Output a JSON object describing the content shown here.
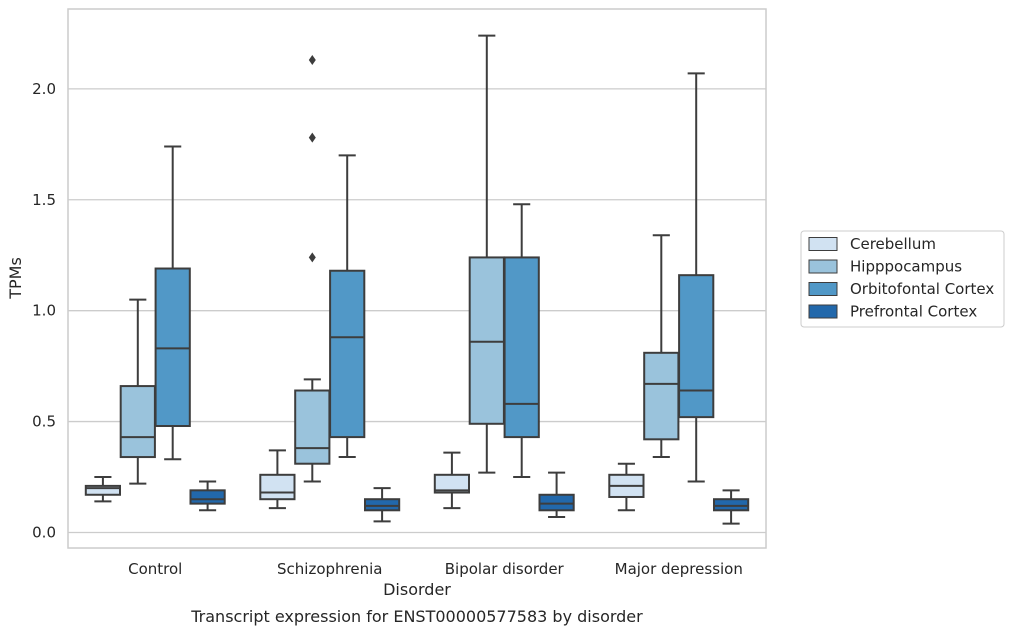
{
  "chart_data": {
    "type": "box",
    "caption": "Transcript expression for ENST00000577583 by disorder",
    "xlabel": "Disorder",
    "ylabel": "TPMs",
    "ylim": [
      -0.07,
      2.36
    ],
    "yticks": [
      0.0,
      0.5,
      1.0,
      1.5,
      2.0
    ],
    "ytick_labels": [
      "0.0",
      "0.5",
      "1.0",
      "1.5",
      "2.0"
    ],
    "grid": "horizontal",
    "legend_position": "right",
    "categories": [
      "Control",
      "Schizophrenia",
      "Bipolar disorder",
      "Major depression"
    ],
    "series": [
      {
        "name": "Cerebellum",
        "color": "#d1e2f2",
        "boxes": [
          {
            "whislo": 0.14,
            "q1": 0.17,
            "med": 0.2,
            "q3": 0.21,
            "whishi": 0.25,
            "fliers": []
          },
          {
            "whislo": 0.11,
            "q1": 0.15,
            "med": 0.18,
            "q3": 0.26,
            "whishi": 0.37,
            "fliers": []
          },
          {
            "whislo": 0.11,
            "q1": 0.18,
            "med": 0.19,
            "q3": 0.26,
            "whishi": 0.36,
            "fliers": []
          },
          {
            "whislo": 0.1,
            "q1": 0.16,
            "med": 0.21,
            "q3": 0.26,
            "whishi": 0.31,
            "fliers": []
          }
        ]
      },
      {
        "name": "Hipppocampus",
        "color": "#9ac3dc",
        "boxes": [
          {
            "whislo": 0.22,
            "q1": 0.34,
            "med": 0.43,
            "q3": 0.66,
            "whishi": 1.05,
            "fliers": []
          },
          {
            "whislo": 0.23,
            "q1": 0.31,
            "med": 0.38,
            "q3": 0.64,
            "whishi": 0.69,
            "fliers": [
              1.24,
              1.78,
              2.13
            ]
          },
          {
            "whislo": 0.27,
            "q1": 0.49,
            "med": 0.86,
            "q3": 1.24,
            "whishi": 2.24,
            "fliers": []
          },
          {
            "whislo": 0.34,
            "q1": 0.42,
            "med": 0.67,
            "q3": 0.81,
            "whishi": 1.34,
            "fliers": []
          }
        ]
      },
      {
        "name": "Orbitofontal Cortex",
        "color": "#5198c7",
        "boxes": [
          {
            "whislo": 0.33,
            "q1": 0.48,
            "med": 0.83,
            "q3": 1.19,
            "whishi": 1.74,
            "fliers": []
          },
          {
            "whislo": 0.34,
            "q1": 0.43,
            "med": 0.88,
            "q3": 1.18,
            "whishi": 1.7,
            "fliers": []
          },
          {
            "whislo": 0.25,
            "q1": 0.43,
            "med": 0.58,
            "q3": 1.24,
            "whishi": 1.48,
            "fliers": []
          },
          {
            "whislo": 0.23,
            "q1": 0.52,
            "med": 0.64,
            "q3": 1.16,
            "whishi": 2.07,
            "fliers": []
          }
        ]
      },
      {
        "name": "Prefrontal Cortex",
        "color": "#2268ab",
        "boxes": [
          {
            "whislo": 0.1,
            "q1": 0.13,
            "med": 0.15,
            "q3": 0.19,
            "whishi": 0.23,
            "fliers": []
          },
          {
            "whislo": 0.05,
            "q1": 0.1,
            "med": 0.12,
            "q3": 0.15,
            "whishi": 0.2,
            "fliers": []
          },
          {
            "whislo": 0.07,
            "q1": 0.1,
            "med": 0.13,
            "q3": 0.17,
            "whishi": 0.27,
            "fliers": []
          },
          {
            "whislo": 0.04,
            "q1": 0.1,
            "med": 0.12,
            "q3": 0.15,
            "whishi": 0.19,
            "fliers": []
          }
        ]
      }
    ]
  }
}
